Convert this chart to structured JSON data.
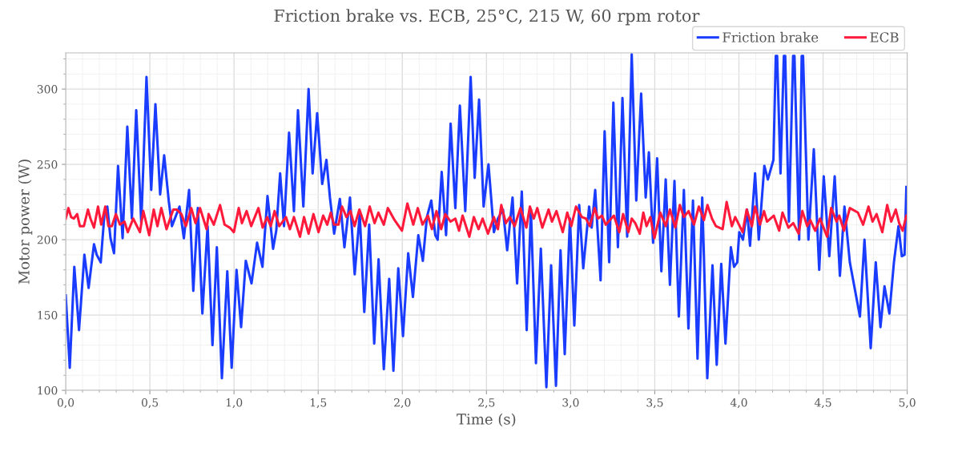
{
  "chart_data": {
    "type": "line",
    "title": "Friction brake vs. ECB, 25°C, 215 W, 60 rpm rotor",
    "xlabel": "Time (s)",
    "ylabel": "Motor power (W)",
    "xlim": [
      0,
      5
    ],
    "ylim": [
      100,
      324
    ],
    "xticks": [
      {
        "value": 0,
        "label": "0,0"
      },
      {
        "value": 0.5,
        "label": "0,5"
      },
      {
        "value": 1,
        "label": "1,0"
      },
      {
        "value": 1.5,
        "label": "1,5"
      },
      {
        "value": 2,
        "label": "2,0"
      },
      {
        "value": 2.5,
        "label": "2,5"
      },
      {
        "value": 3,
        "label": "3,0"
      },
      {
        "value": 3.5,
        "label": "3,5"
      },
      {
        "value": 4,
        "label": "4,0"
      },
      {
        "value": 4.5,
        "label": "4,5"
      },
      {
        "value": 5,
        "label": "5,0"
      }
    ],
    "yticks": [
      100,
      150,
      200,
      250,
      300
    ],
    "grid": true,
    "legend": "top right",
    "marker": "none",
    "line_style": "solid",
    "series": [
      {
        "name": "Friction brake",
        "color": "#1a3cff",
        "x": [
          0.0,
          0.024,
          0.051,
          0.079,
          0.111,
          0.136,
          0.168,
          0.184,
          0.208,
          0.23,
          0.247,
          0.266,
          0.287,
          0.311,
          0.338,
          0.366,
          0.393,
          0.419,
          0.449,
          0.48,
          0.508,
          0.533,
          0.561,
          0.585,
          0.612,
          0.631,
          0.676,
          0.702,
          0.733,
          0.758,
          0.785,
          0.812,
          0.843,
          0.872,
          0.898,
          0.928,
          0.96,
          0.986,
          1.015,
          1.042,
          1.07,
          1.104,
          1.137,
          1.169,
          1.199,
          1.232,
          1.251,
          1.274,
          1.297,
          1.327,
          1.356,
          1.38,
          1.412,
          1.443,
          1.467,
          1.494,
          1.524,
          1.549,
          1.57,
          1.595,
          1.629,
          1.656,
          1.689,
          1.717,
          1.747,
          1.774,
          1.803,
          1.833,
          1.859,
          1.89,
          1.922,
          1.947,
          1.976,
          2.004,
          2.035,
          2.063,
          2.095,
          2.122,
          2.146,
          2.172,
          2.196,
          2.21,
          2.234,
          2.26,
          2.287,
          2.315,
          2.342,
          2.374,
          2.406,
          2.43,
          2.456,
          2.483,
          2.512,
          2.544,
          2.568,
          2.598,
          2.623,
          2.655,
          2.682,
          2.71,
          2.739,
          2.764,
          2.794,
          2.823,
          2.856,
          2.884,
          2.913,
          2.94,
          2.965,
          2.996,
          3.022,
          3.051,
          3.075,
          3.11,
          3.125,
          3.146,
          3.178,
          3.202,
          3.229,
          3.254,
          3.281,
          3.308,
          3.336,
          3.363,
          3.39,
          3.419,
          3.446,
          3.465,
          3.49,
          3.514,
          3.539,
          3.565,
          3.59,
          3.617,
          3.643,
          3.673,
          3.7,
          3.727,
          3.754,
          3.782,
          3.812,
          3.843,
          3.868,
          3.895,
          3.92,
          3.952,
          3.971,
          3.99,
          4.002,
          4.024,
          4.048,
          4.066,
          4.096,
          4.118,
          4.151,
          4.172,
          4.205,
          4.219,
          4.227,
          4.247,
          4.267,
          4.275,
          4.297,
          4.322,
          4.33,
          4.358,
          4.373,
          4.381,
          4.413,
          4.445,
          4.477,
          4.504,
          4.537,
          4.569,
          4.6,
          4.627,
          4.659,
          4.719,
          4.746,
          4.783,
          4.813,
          4.841,
          4.865,
          4.894,
          4.921,
          4.948,
          4.968,
          4.984,
          4.995
        ],
        "values": [
          163,
          115,
          182,
          140,
          190,
          168,
          197,
          190,
          185,
          217,
          222,
          201,
          191,
          249,
          201,
          275,
          214,
          286,
          211,
          308,
          233,
          290,
          230,
          256,
          226,
          209,
          222,
          201,
          233,
          166,
          221,
          151,
          209,
          130,
          195,
          108,
          179,
          115,
          180,
          142,
          186,
          171,
          198,
          182,
          229,
          194,
          206,
          244,
          209,
          271,
          219,
          286,
          222,
          300,
          244,
          284,
          237,
          253,
          228,
          204,
          227,
          195,
          228,
          177,
          217,
          152,
          210,
          131,
          187,
          114,
          174,
          113,
          181,
          136,
          191,
          162,
          203,
          186,
          215,
          226,
          203,
          200,
          245,
          203,
          277,
          221,
          289,
          219,
          308,
          241,
          293,
          222,
          250,
          205,
          214,
          220,
          193,
          228,
          171,
          232,
          140,
          220,
          118,
          194,
          102,
          183,
          103,
          193,
          124,
          214,
          143,
          223,
          181,
          222,
          208,
          233,
          173,
          272,
          185,
          291,
          195,
          294,
          202,
          323,
          226,
          297,
          228,
          258,
          198,
          254,
          179,
          240,
          170,
          239,
          149,
          233,
          141,
          226,
          121,
          228,
          108,
          183,
          117,
          184,
          131,
          195,
          182,
          185,
          205,
          200,
          220,
          196,
          244,
          200,
          249,
          240,
          253,
          322,
          322,
          244,
          322,
          322,
          212,
          322,
          322,
          200,
          322,
          322,
          200,
          260,
          180,
          242,
          189,
          242,
          176,
          222,
          185,
          149,
          200,
          128,
          185,
          142,
          169,
          151,
          185,
          209,
          189,
          190,
          235
        ]
      },
      {
        "name": "ECB",
        "color": "#ff1a3c",
        "x": [
          0.0,
          0.016,
          0.032,
          0.048,
          0.068,
          0.084,
          0.108,
          0.132,
          0.147,
          0.168,
          0.192,
          0.211,
          0.235,
          0.254,
          0.274,
          0.298,
          0.322,
          0.349,
          0.369,
          0.401,
          0.441,
          0.461,
          0.496,
          0.523,
          0.545,
          0.568,
          0.599,
          0.639,
          0.66,
          0.687,
          0.714,
          0.746,
          0.771,
          0.798,
          0.837,
          0.849,
          0.88,
          0.917,
          0.944,
          0.975,
          0.999,
          1.028,
          1.047,
          1.075,
          1.102,
          1.145,
          1.17,
          1.197,
          1.218,
          1.241,
          1.269,
          1.309,
          1.332,
          1.356,
          1.392,
          1.416,
          1.443,
          1.472,
          1.502,
          1.53,
          1.554,
          1.575,
          1.594,
          1.621,
          1.642,
          1.668,
          1.692,
          1.716,
          1.745,
          1.779,
          1.806,
          1.835,
          1.858,
          1.89,
          1.914,
          1.954,
          1.998,
          2.03,
          2.065,
          2.092,
          2.12,
          2.152,
          2.176,
          2.203,
          2.231,
          2.255,
          2.287,
          2.315,
          2.337,
          2.358,
          2.398,
          2.425,
          2.453,
          2.477,
          2.509,
          2.544,
          2.568,
          2.588,
          2.615,
          2.639,
          2.667,
          2.702,
          2.737,
          2.758,
          2.781,
          2.802,
          2.832,
          2.869,
          2.889,
          2.916,
          2.953,
          2.98,
          3.004,
          3.032,
          3.067,
          3.091,
          3.114,
          3.143,
          3.162,
          3.186,
          3.209,
          3.257,
          3.289,
          3.312,
          3.343,
          3.363,
          3.384,
          3.411,
          3.432,
          3.451,
          3.474,
          3.498,
          3.533,
          3.565,
          3.59,
          3.622,
          3.649,
          3.673,
          3.701,
          3.733,
          3.762,
          3.792,
          3.813,
          3.84,
          3.863,
          3.903,
          3.927,
          3.958,
          3.978,
          4.022,
          4.046,
          4.077,
          4.096,
          4.125,
          4.149,
          4.167,
          4.207,
          4.239,
          4.259,
          4.294,
          4.323,
          4.355,
          4.377,
          4.406,
          4.424,
          4.453,
          4.482,
          4.524,
          4.548,
          4.58,
          4.596,
          4.624,
          4.659,
          4.707,
          4.738,
          4.77,
          4.794,
          4.818,
          4.852,
          4.881,
          4.905,
          4.932,
          4.952,
          4.973,
          4.995
        ],
        "values": [
          214,
          221,
          215,
          214,
          217,
          209,
          209,
          220,
          214,
          208,
          222,
          210,
          222,
          209,
          209,
          217,
          210,
          212,
          205,
          214,
          205,
          219,
          203,
          220,
          209,
          221,
          207,
          220,
          220,
          217,
          209,
          221,
          211,
          221,
          207,
          217,
          210,
          223,
          210,
          208,
          205,
          221,
          211,
          219,
          209,
          221,
          208,
          215,
          209,
          219,
          209,
          215,
          207,
          215,
          202,
          215,
          204,
          217,
          205,
          216,
          210,
          218,
          210,
          210,
          222,
          215,
          219,
          209,
          220,
          209,
          222,
          211,
          218,
          210,
          221,
          213,
          206,
          224,
          210,
          221,
          210,
          216,
          207,
          219,
          207,
          217,
          212,
          214,
          206,
          216,
          202,
          215,
          207,
          214,
          204,
          215,
          207,
          223,
          211,
          215,
          209,
          221,
          208,
          222,
          214,
          221,
          208,
          220,
          212,
          219,
          205,
          218,
          209,
          222,
          215,
          214,
          209,
          221,
          214,
          216,
          210,
          216,
          205,
          217,
          205,
          214,
          211,
          204,
          218,
          209,
          215,
          201,
          218,
          209,
          220,
          208,
          223,
          215,
          219,
          210,
          222,
          213,
          223,
          214,
          209,
          207,
          225,
          209,
          215,
          205,
          220,
          209,
          222,
          210,
          219,
          212,
          216,
          206,
          218,
          208,
          211,
          204,
          219,
          209,
          213,
          206,
          214,
          202,
          221,
          212,
          216,
          206,
          221,
          218,
          210,
          222,
          212,
          217,
          205,
          223,
          212,
          220,
          211,
          206,
          216
        ]
      }
    ]
  }
}
